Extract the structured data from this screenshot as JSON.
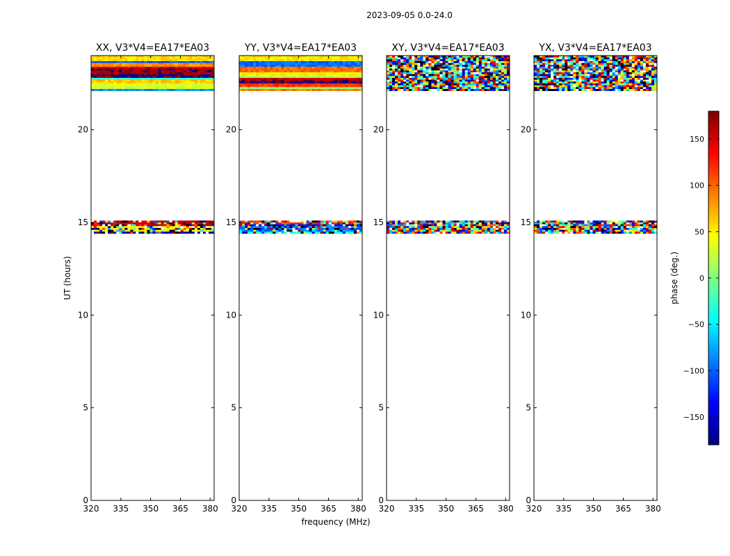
{
  "figure_title": "2023-09-05 0.0-24.0",
  "ylabel": "UT (hours)",
  "xlabel": "frequency (MHz)",
  "colorbar": {
    "label": "phase (deg.)",
    "range": [
      -180,
      180
    ],
    "ticks": [
      150,
      100,
      50,
      0,
      -50,
      -100,
      -150
    ],
    "tick_labels": [
      "150",
      "100",
      "50",
      "0",
      "−50",
      "−100",
      "−150"
    ],
    "colormap": [
      "#00007f",
      "#0000ff",
      "#007fff",
      "#00ffff",
      "#7fff7f",
      "#ffff00",
      "#ff7f00",
      "#ff0000",
      "#7f0000"
    ]
  },
  "chart_data": [
    {
      "type": "heatmap",
      "title": "XX, V3*V4=EA17*EA03",
      "xlim": [
        320,
        382
      ],
      "ylim": [
        0,
        24
      ],
      "xticks": [
        320,
        335,
        350,
        365,
        380
      ],
      "yticks": [
        0,
        5,
        10,
        15,
        20
      ],
      "data_blocks": [
        {
          "ut_start": 22.1,
          "ut_end": 24.0,
          "pattern": "horizontal phase bands",
          "noise": "low"
        },
        {
          "ut_start": 14.4,
          "ut_end": 15.1,
          "pattern": "horizontal phase bands",
          "noise": "high"
        }
      ]
    },
    {
      "type": "heatmap",
      "title": "YY, V3*V4=EA17*EA03",
      "xlim": [
        320,
        382
      ],
      "ylim": [
        0,
        24
      ],
      "xticks": [
        320,
        335,
        350,
        365,
        380
      ],
      "yticks": [
        0,
        5,
        10,
        15,
        20
      ],
      "data_blocks": [
        {
          "ut_start": 22.1,
          "ut_end": 24.0,
          "pattern": "horizontal phase bands",
          "noise": "low"
        },
        {
          "ut_start": 14.4,
          "ut_end": 15.1,
          "pattern": "horizontal phase bands",
          "noise": "high"
        }
      ]
    },
    {
      "type": "heatmap",
      "title": "XY, V3*V4=EA17*EA03",
      "xlim": [
        320,
        382
      ],
      "ylim": [
        0,
        24
      ],
      "xticks": [
        320,
        335,
        350,
        365,
        380
      ],
      "yticks": [
        0,
        5,
        10,
        15,
        20
      ],
      "data_blocks": [
        {
          "ut_start": 22.1,
          "ut_end": 24.0,
          "pattern": "noisy random phase",
          "noise": "high"
        },
        {
          "ut_start": 14.4,
          "ut_end": 15.1,
          "pattern": "noisy random phase",
          "noise": "high"
        }
      ]
    },
    {
      "type": "heatmap",
      "title": "YX, V3*V4=EA17*EA03",
      "xlim": [
        320,
        382
      ],
      "ylim": [
        0,
        24
      ],
      "xticks": [
        320,
        335,
        350,
        365,
        380
      ],
      "yticks": [
        0,
        5,
        10,
        15,
        20
      ],
      "data_blocks": [
        {
          "ut_start": 22.1,
          "ut_end": 24.0,
          "pattern": "noisy random phase",
          "noise": "high"
        },
        {
          "ut_start": 14.4,
          "ut_end": 15.1,
          "pattern": "noisy random phase",
          "noise": "high"
        }
      ]
    }
  ]
}
